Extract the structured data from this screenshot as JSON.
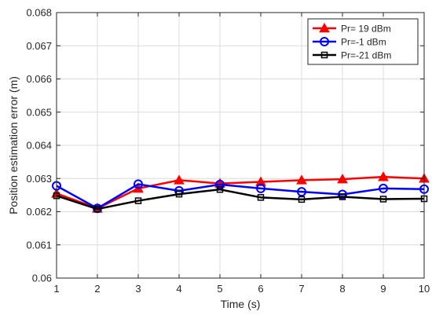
{
  "chart_data": {
    "type": "line",
    "title": "",
    "xlabel": "Time (s)",
    "ylabel": "Position estimation error (m)",
    "xlim": [
      1,
      10
    ],
    "ylim": [
      0.06,
      0.068
    ],
    "xticks": [
      "1",
      "2",
      "3",
      "4",
      "5",
      "6",
      "7",
      "8",
      "9",
      "10"
    ],
    "yticks": [
      "0.06",
      "0.061",
      "0.062",
      "0.063",
      "0.064",
      "0.065",
      "0.066",
      "0.067",
      "0.068"
    ],
    "grid": true,
    "legend_position": "top-right",
    "x": [
      1,
      2,
      3,
      4,
      5,
      6,
      7,
      8,
      9,
      10
    ],
    "series": [
      {
        "name": "Pr= 19 dBm",
        "color": "#ff0000",
        "marker": "triangle",
        "values": [
          0.06255,
          0.0621,
          0.0627,
          0.06295,
          0.06285,
          0.0629,
          0.06295,
          0.06298,
          0.06305,
          0.063
        ]
      },
      {
        "name": "Pr=-1 dBm",
        "color": "#0000ff",
        "marker": "circle",
        "values": [
          0.06278,
          0.0621,
          0.06283,
          0.06263,
          0.06282,
          0.0627,
          0.0626,
          0.06252,
          0.0627,
          0.06268
        ]
      },
      {
        "name": "Pr=-21 dBm",
        "color": "#000000",
        "marker": "square",
        "values": [
          0.06248,
          0.06208,
          0.06233,
          0.06253,
          0.06267,
          0.06243,
          0.06237,
          0.06245,
          0.06238,
          0.06239
        ]
      }
    ]
  }
}
